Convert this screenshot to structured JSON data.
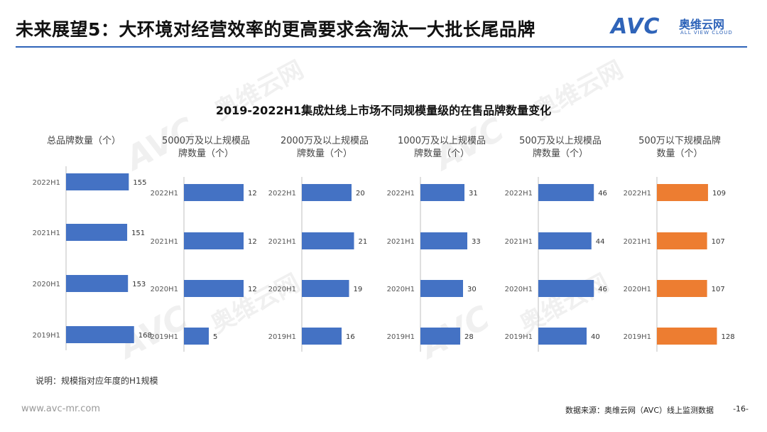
{
  "header": {
    "title": "未来展望5：大环境对经营效率的更高要求会淘汰一大批长尾品牌",
    "logo_text": "AVC",
    "logo_cn": "奥维云网",
    "logo_en": "ALL VIEW CLOUD"
  },
  "colors": {
    "accent": "#2f64b9",
    "bar_blue": "#4472c4",
    "bar_orange": "#ed7d31"
  },
  "watermark": {
    "logo": "AVC",
    "cn": "奥维云网"
  },
  "chart_data": {
    "type": "bar",
    "orientation": "horizontal",
    "title": "2019-2022H1集成灶线上市场不同规模量级的在售品牌数量变化",
    "categories": [
      "2022H1",
      "2021H1",
      "2020H1",
      "2019H1"
    ],
    "series": [
      {
        "name": "总品牌数量（个）",
        "title_lines": [
          "总品牌数量（个）"
        ],
        "color": "#4472c4",
        "values": [
          155,
          151,
          153,
          168
        ]
      },
      {
        "name": "5000万及以上规模品牌数量（个）",
        "title_lines": [
          "5000万及以上规模品",
          "牌数量（个）"
        ],
        "color": "#4472c4",
        "values": [
          12,
          12,
          12,
          5
        ]
      },
      {
        "name": "2000万及以上规模品牌数量（个）",
        "title_lines": [
          "2000万及以上规模品",
          "牌数量（个）"
        ],
        "color": "#4472c4",
        "values": [
          20,
          21,
          19,
          16
        ]
      },
      {
        "name": "1000万及以上规模品牌数量（个）",
        "title_lines": [
          "1000万及以上规模品",
          "牌数量（个）"
        ],
        "color": "#4472c4",
        "values": [
          31,
          33,
          30,
          28
        ]
      },
      {
        "name": "500万及以上规模品牌数量（个）",
        "title_lines": [
          "500万及以上规模品",
          "牌数量（个）"
        ],
        "color": "#4472c4",
        "values": [
          46,
          44,
          46,
          40
        ]
      },
      {
        "name": "500万以下规模品牌数量（个）",
        "title_lines": [
          "500万以下规模品牌",
          "数量（个）"
        ],
        "color": "#ed7d31",
        "values": [
          109,
          107,
          107,
          128
        ]
      }
    ],
    "grid": false,
    "legend": "none"
  },
  "footer": {
    "note": "说明：规模指对应年度的H1规模",
    "website": "www.avc-mr.com",
    "source": "数据来源：奥维云网（AVC）线上监测数据",
    "page": "-16-"
  }
}
